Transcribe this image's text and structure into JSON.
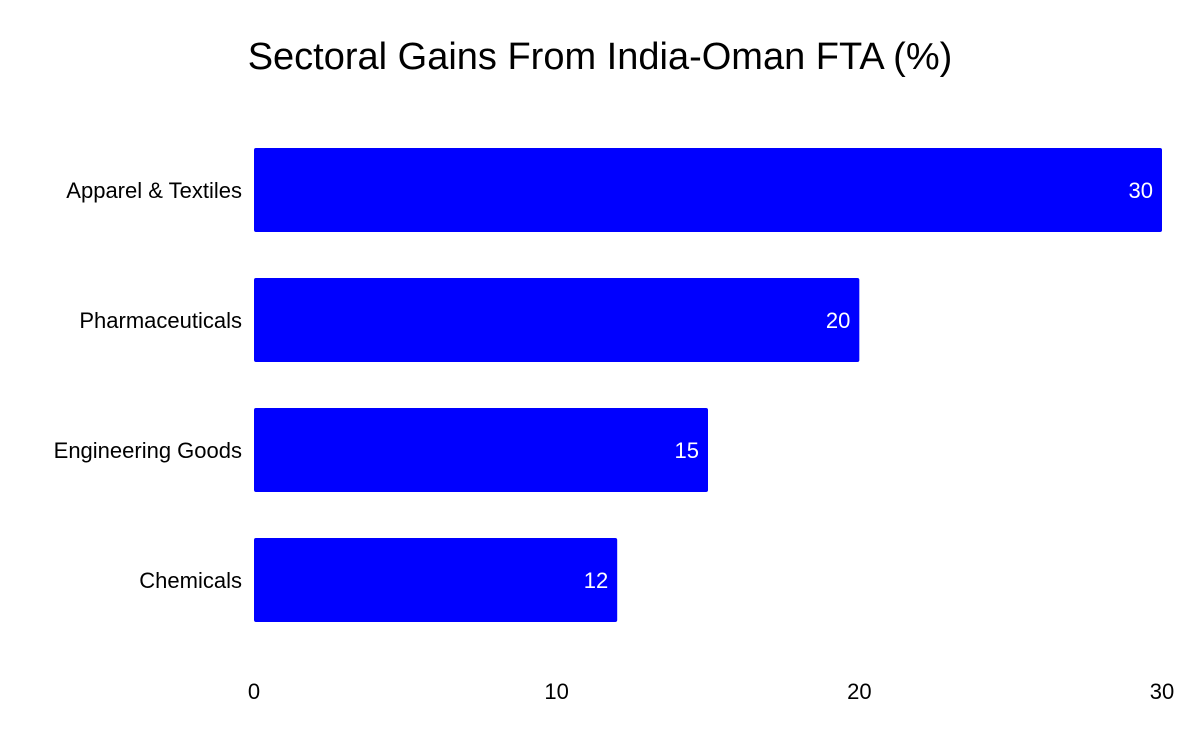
{
  "chart_data": {
    "type": "bar",
    "orientation": "horizontal",
    "title": "Sectoral Gains From India-Oman FTA (%)",
    "xlabel": "",
    "ylabel": "",
    "categories": [
      "Apparel & Textiles",
      "Pharmaceuticals",
      "Engineering Goods",
      "Chemicals"
    ],
    "values": [
      30,
      20,
      15,
      12
    ],
    "data_labels": [
      "30",
      "20",
      "15",
      "12"
    ],
    "xlim": [
      0,
      30
    ],
    "xticks": [
      0,
      10,
      20,
      30
    ],
    "xtick_labels": [
      "0",
      "10",
      "20",
      "30"
    ],
    "grid": false,
    "legend": false,
    "colors": {
      "bar": "#0000ff",
      "value_label": "#ffffff",
      "text": "#000000",
      "background": "#ffffff"
    }
  }
}
